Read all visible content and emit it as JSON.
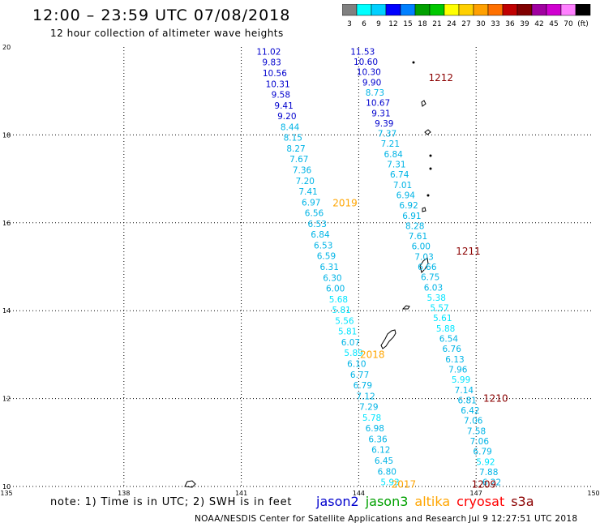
{
  "header": {
    "title": "12:00 – 23:59 UTC 07/08/2018",
    "subtitle": "12 hour collection of altimeter wave heights"
  },
  "legend": {
    "colors": [
      "#808080",
      "#00ffff",
      "#00d0ff",
      "#0000ff",
      "#0080ff",
      "#00a000",
      "#00c800",
      "#ffff00",
      "#ffd000",
      "#ffa000",
      "#ff7000",
      "#c00000",
      "#800000",
      "#a000a0",
      "#d000d0",
      "#ff80ff",
      "#000000"
    ],
    "labels": [
      "3",
      "6",
      "9",
      "12",
      "15",
      "18",
      "21",
      "24",
      "27",
      "30",
      "33",
      "36",
      "39",
      "42",
      "45",
      "70",
      "(ft)"
    ]
  },
  "axes": {
    "x_ticks": [
      "135",
      "138",
      "141",
      "144",
      "147",
      "150"
    ],
    "y_ticks": [
      "20",
      "18",
      "16",
      "14",
      "12",
      "10"
    ],
    "lon_min": 135,
    "lon_max": 150,
    "lat_min": 10,
    "lat_max": 20
  },
  "chart_data": {
    "type": "scatter",
    "title": "12 hour collection of altimeter wave heights",
    "units": "ft",
    "tracks": [
      {
        "satellite": "jason2",
        "pass_label": "",
        "lon": [
          141.7,
          144.8
        ],
        "lat": [
          19.9,
          10.1
        ],
        "values": [
          "11.02",
          "9.83",
          "10.56",
          "10.31",
          "9.58",
          "9.41",
          "9.20",
          "8.44",
          "8.15",
          "8.27",
          "7.67",
          "7.36",
          "7.20",
          "7.41",
          "6.97",
          "6.56",
          "6.53",
          "6.84",
          "6.53",
          "6.59",
          "6.31",
          "6.30",
          "6.00",
          "5.68",
          "5.81",
          "5.56",
          "5.81",
          "6.07",
          "5.89",
          "6.10",
          "6.77",
          "6.79",
          "7.12",
          "7.29",
          "5.78",
          "6.98",
          "6.36",
          "6.12",
          "6.45",
          "6.80",
          "5.93"
        ]
      },
      {
        "satellite": "jason2",
        "pass_label": "",
        "lon": [
          144.1,
          147.4
        ],
        "lat": [
          19.9,
          10.1
        ],
        "values": [
          "11.53",
          "10.60",
          "10.30",
          "9.90",
          "8.73",
          "10.67",
          "9.31",
          "9.39",
          "7.37",
          "7.21",
          "6.84",
          "7.31",
          "6.74",
          "7.01",
          "6.94",
          "6.92",
          "6.91",
          "8.28",
          "7.61",
          "6.00",
          "7.03",
          "6.66",
          "6.75",
          "6.03",
          "5.38",
          "5.57",
          "5.61",
          "5.88",
          "6.54",
          "6.76",
          "6.13",
          "7.96",
          "5.99",
          "7.14",
          "6.81",
          "6.42",
          "7.06",
          "7.58",
          "7.06",
          "6.79",
          "5.92",
          "7.88",
          "6.22"
        ]
      }
    ],
    "labels": [
      {
        "text": "1212",
        "lon": 146.1,
        "lat": 19.3,
        "color": "#8b0000"
      },
      {
        "text": "1211",
        "lon": 146.8,
        "lat": 15.35,
        "color": "#8b0000"
      },
      {
        "text": "1210",
        "lon": 147.5,
        "lat": 12.0,
        "color": "#8b0000"
      },
      {
        "text": "1209",
        "lon": 147.2,
        "lat": 10.05,
        "color": "#8b0000"
      },
      {
        "text": "2019",
        "lon": 143.65,
        "lat": 16.45,
        "color": "#ffa500"
      },
      {
        "text": "2018",
        "lon": 144.35,
        "lat": 13.0,
        "color": "#ffa500"
      },
      {
        "text": "2017",
        "lon": 145.15,
        "lat": 10.05,
        "color": "#ffa500"
      }
    ]
  },
  "note": "note: 1) Time is in UTC; 2) SWH is in feet",
  "satellites": [
    {
      "name": "jason2",
      "color": "#0000cd"
    },
    {
      "name": "jason3",
      "color": "#00a000"
    },
    {
      "name": "altika",
      "color": "#ffa500"
    },
    {
      "name": "cryosat",
      "color": "#ff0000"
    },
    {
      "name": "s3a",
      "color": "#8b0000"
    }
  ],
  "footer": {
    "left": "NOAA/NESDIS Center for Satellite Applications and Research",
    "right": "Jul  9 12:27:51 UTC 2018"
  }
}
